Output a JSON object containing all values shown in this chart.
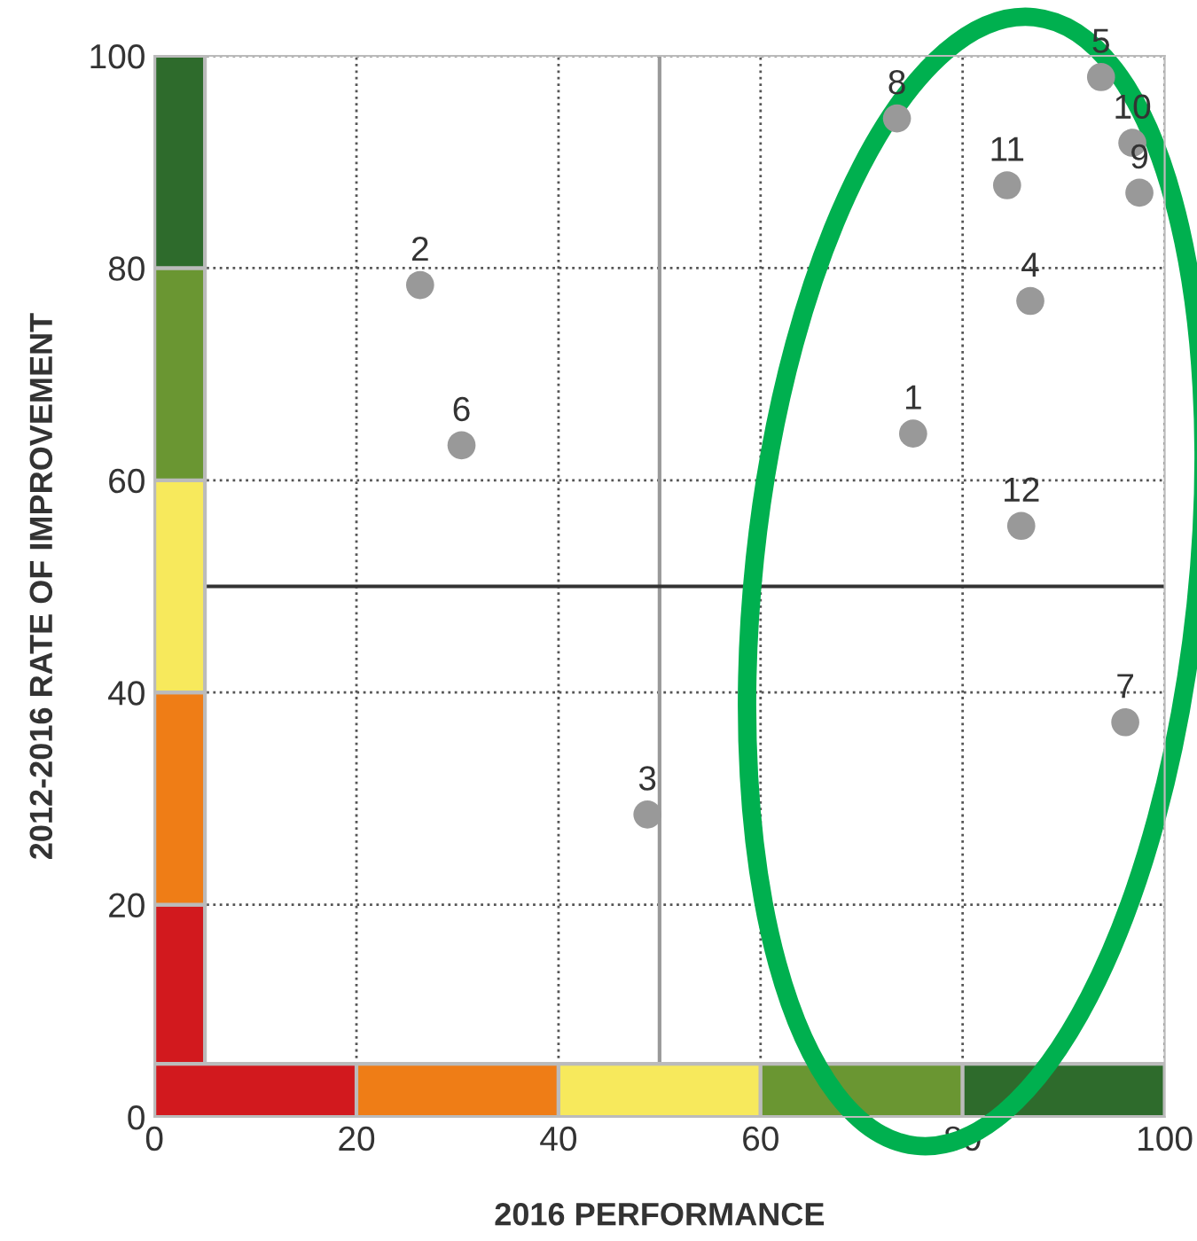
{
  "chart_data": {
    "type": "scatter",
    "xlabel": "2016 PERFORMANCE",
    "ylabel": "2012-2016 RATE OF IMPROVEMENT",
    "x": [
      75.1,
      26.3,
      48.8,
      86.7,
      93.7,
      30.4,
      96.1,
      73.5,
      97.5,
      96.8,
      84.4,
      85.8
    ],
    "series": [
      {
        "color": "#999999",
        "values": [
          64.4,
          78.4,
          28.5,
          76.9,
          98.0,
          63.3,
          37.2,
          94.1,
          87.1,
          91.8,
          87.8,
          55.7
        ]
      }
    ],
    "marker": "circle",
    "xlim": [
      0,
      100
    ],
    "ylim": [
      0,
      100
    ],
    "xticks": [
      0,
      20,
      40,
      60,
      80,
      100
    ],
    "yticks": [
      0,
      20,
      40,
      60,
      80,
      100
    ],
    "grid": true,
    "ref_lines": [
      {
        "axis": "x",
        "value": 50,
        "color": "#999999"
      },
      {
        "axis": "y",
        "value": 50,
        "color": "#333333"
      }
    ],
    "bands": [
      {
        "axis": "y",
        "from": 0,
        "to": 20,
        "color": "#d2191e"
      },
      {
        "axis": "y",
        "from": 20,
        "to": 40,
        "color": "#ef7d16"
      },
      {
        "axis": "y",
        "from": 40,
        "to": 60,
        "color": "#f7e95c"
      },
      {
        "axis": "y",
        "from": 60,
        "to": 80,
        "color": "#6a9632"
      },
      {
        "axis": "y",
        "from": 80,
        "to": 100,
        "color": "#2e6b2c"
      },
      {
        "axis": "x",
        "from": 0,
        "to": 20,
        "color": "#d2191e"
      },
      {
        "axis": "x",
        "from": 20,
        "to": 40,
        "color": "#ef7d16"
      },
      {
        "axis": "x",
        "from": 40,
        "to": 60,
        "color": "#f7e95c"
      },
      {
        "axis": "x",
        "from": 60,
        "to": 80,
        "color": "#6a9632"
      },
      {
        "axis": "x",
        "from": 80,
        "to": 100,
        "color": "#2e6b2c"
      }
    ],
    "annotations": [
      {
        "text": "1",
        "x": 75.1,
        "y": 64.4
      },
      {
        "text": "2",
        "x": 26.3,
        "y": 78.4
      },
      {
        "text": "3",
        "x": 48.8,
        "y": 28.5
      },
      {
        "text": "4",
        "x": 86.7,
        "y": 76.9
      },
      {
        "text": "5",
        "x": 93.7,
        "y": 98.0
      },
      {
        "text": "6",
        "x": 30.4,
        "y": 63.3
      },
      {
        "text": "7",
        "x": 96.1,
        "y": 37.2
      },
      {
        "text": "8",
        "x": 73.5,
        "y": 94.1
      },
      {
        "text": "9",
        "x": 97.5,
        "y": 87.1
      },
      {
        "text": "10",
        "x": 96.8,
        "y": 91.8
      },
      {
        "text": "11",
        "x": 84.4,
        "y": 87.8
      },
      {
        "text": "12",
        "x": 85.8,
        "y": 55.7
      }
    ]
  }
}
